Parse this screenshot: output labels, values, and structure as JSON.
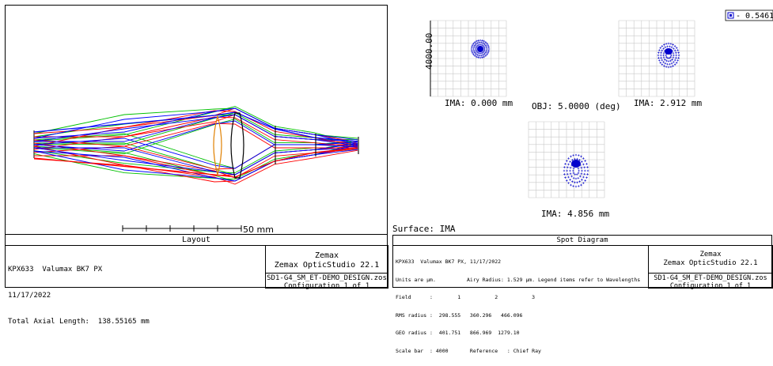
{
  "layout": {
    "title": "Layout",
    "scalebar_label": "50 mm",
    "info_lines": [
      "KPX633  Valumax BK7 PX",
      "11/17/2022",
      "Total Axial Length:  138.55165 mm"
    ],
    "company": "Zemax",
    "product": "Zemax OpticStudio 22.1",
    "file": "SD1-G4_SM_ET-DEMO_DESIGN.zos",
    "config": "Configuration 1 of 1",
    "colors": {
      "blue": "#0000ff",
      "green": "#00c000",
      "red": "#ff0000",
      "lens": "#e08000"
    }
  },
  "spot": {
    "title": "Spot Diagram",
    "surface_label": "Surface: IMA",
    "scale_axis_label": "4000.00",
    "obj_label": "OBJ: 5.0000 (deg)",
    "legend_value": "0.5461",
    "fields": [
      {
        "ima": "IMA: 0.000 mm"
      },
      {
        "ima": "IMA: 2.912 mm"
      },
      {
        "ima": "IMA: 4.856 mm"
      }
    ],
    "info_lines": [
      "KPX633  Valumax BK7 PX, 11/17/2022",
      "Units are µm.          Airy Radius: 1.529 µm. Legend items refer to Wavelengths",
      "Field      :        1           2           3",
      "RMS radius :  298.555   360.296   466.096",
      "GEO radius :  401.751   866.969  1279.10",
      "Scale bar  : 4000       Reference   : Chief Ray"
    ],
    "company": "Zemax",
    "product": "Zemax OpticStudio 22.1",
    "file": "SD1-G4_SM_ET-DEMO_DESIGN.zos",
    "config": "Configuration 1 of 1",
    "colors": {
      "spot": "#0000cc",
      "grid": "#c8c8c8"
    }
  }
}
